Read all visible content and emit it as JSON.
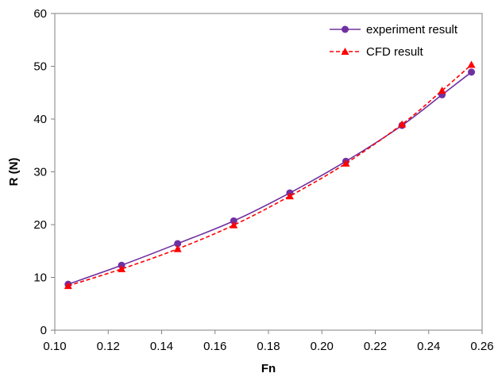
{
  "chart_data": {
    "type": "line",
    "xlabel": "Fn",
    "ylabel": "R (N)",
    "xlim": [
      0.1,
      0.26
    ],
    "ylim": [
      0,
      60
    ],
    "xticks": [
      "0.10",
      "0.12",
      "0.14",
      "0.16",
      "0.18",
      "0.20",
      "0.22",
      "0.24",
      "0.26"
    ],
    "yticks": [
      "0",
      "10",
      "20",
      "30",
      "40",
      "50",
      "60"
    ],
    "grid": false,
    "legend_position": "top-right",
    "series": [
      {
        "name": "experiment result",
        "color": "#7030A0",
        "marker": "circle",
        "line_style": "solid",
        "x": [
          0.105,
          0.125,
          0.146,
          0.167,
          0.188,
          0.209,
          0.23,
          0.245,
          0.256
        ],
        "y": [
          8.7,
          12.3,
          16.4,
          20.7,
          26.0,
          32.0,
          38.8,
          44.6,
          48.9
        ]
      },
      {
        "name": "CFD result",
        "color": "#FF0000",
        "marker": "triangle",
        "line_style": "dashed",
        "x": [
          0.105,
          0.125,
          0.146,
          0.167,
          0.188,
          0.209,
          0.23,
          0.245,
          0.256
        ],
        "y": [
          8.4,
          11.6,
          15.4,
          19.9,
          25.4,
          31.6,
          39.0,
          45.4,
          50.3
        ]
      }
    ]
  }
}
